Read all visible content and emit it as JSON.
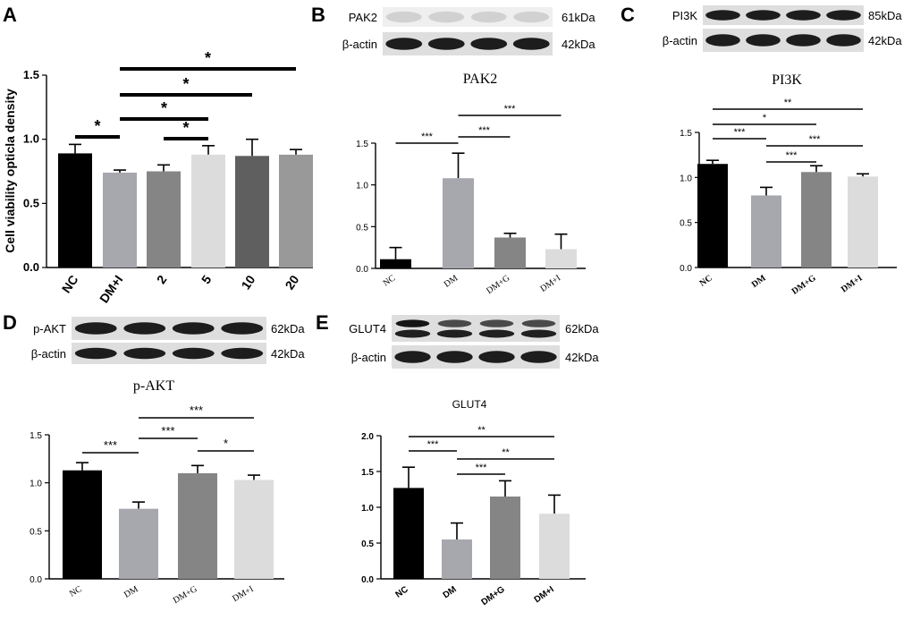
{
  "chart_data": [
    {
      "panel": "A",
      "type": "bar",
      "ylabel": "Cell viability opticla density",
      "categories": [
        "NC",
        "DM+I",
        "2",
        "5",
        "10",
        "20"
      ],
      "values": [
        0.89,
        0.74,
        0.75,
        0.88,
        0.87,
        0.88
      ],
      "errors": [
        0.07,
        0.02,
        0.05,
        0.07,
        0.13,
        0.04
      ],
      "ylim": [
        0.0,
        1.5
      ],
      "yticks": [
        "0.0",
        "0.5",
        "1.0",
        "1.5"
      ],
      "colors": [
        "#000000",
        "#a7a7ae",
        "#858585",
        "#dcdcdc",
        "#5f5f5f",
        "#999999"
      ],
      "significance": [
        {
          "from": 0,
          "to": 1,
          "label": "*"
        },
        {
          "from": 2,
          "to": 3,
          "label": "*"
        },
        {
          "from": 1,
          "to": 3,
          "label": "*"
        },
        {
          "from": 1,
          "to": 4,
          "label": "*"
        },
        {
          "from": 1,
          "to": 5,
          "label": "*"
        }
      ],
      "blot": null
    },
    {
      "panel": "B",
      "type": "bar",
      "title": "PAK2",
      "categories": [
        "NC",
        "DM",
        "DM+G",
        "DM+I"
      ],
      "values": [
        0.11,
        1.08,
        0.37,
        0.23
      ],
      "errors": [
        0.14,
        0.3,
        0.05,
        0.18
      ],
      "ylim": [
        0.0,
        1.5
      ],
      "yticks": [
        "0.0",
        "0.5",
        "1.0",
        "1.5"
      ],
      "colors": [
        "#000000",
        "#a7a7ae",
        "#858585",
        "#dcdcdc"
      ],
      "significance": [
        {
          "from": 0,
          "to": 1,
          "label": "***"
        },
        {
          "from": 1,
          "to": 2,
          "label": "***"
        },
        {
          "from": 1,
          "to": 3,
          "label": "***"
        }
      ],
      "blot": {
        "rows": [
          {
            "label": "PAK2",
            "size": "61kDa",
            "style": "faint"
          },
          {
            "label": "β-actin",
            "size": "42kDa",
            "style": "dark"
          }
        ]
      }
    },
    {
      "panel": "C",
      "type": "bar",
      "title": "PI3K",
      "categories": [
        "NC",
        "DM",
        "DM+G",
        "DM+I"
      ],
      "values": [
        1.15,
        0.8,
        1.06,
        1.01
      ],
      "errors": [
        0.04,
        0.09,
        0.07,
        0.03
      ],
      "ylim": [
        0.0,
        1.5
      ],
      "yticks": [
        "0.0",
        "0.5",
        "1.0",
        "1.5"
      ],
      "colors": [
        "#000000",
        "#a7a7ae",
        "#858585",
        "#dcdcdc"
      ],
      "significance": [
        {
          "from": 0,
          "to": 1,
          "label": "***"
        },
        {
          "from": 1,
          "to": 2,
          "label": "***"
        },
        {
          "from": 1,
          "to": 3,
          "label": "***"
        },
        {
          "from": 0,
          "to": 2,
          "label": "*"
        },
        {
          "from": 0,
          "to": 3,
          "label": "**"
        }
      ],
      "blot": {
        "rows": [
          {
            "label": "PI3K",
            "size": "85kDa",
            "style": "dark"
          },
          {
            "label": "β-actin",
            "size": "42kDa",
            "style": "dark"
          }
        ]
      }
    },
    {
      "panel": "D",
      "type": "bar",
      "title": "p-AKT",
      "categories": [
        "NC",
        "DM",
        "DM+G",
        "DM+I"
      ],
      "values": [
        1.13,
        0.73,
        1.1,
        1.03
      ],
      "errors": [
        0.08,
        0.07,
        0.08,
        0.05
      ],
      "ylim": [
        0.0,
        1.5
      ],
      "yticks": [
        "0.0",
        "0.5",
        "1.0",
        "1.5"
      ],
      "colors": [
        "#000000",
        "#a7a7ae",
        "#858585",
        "#dcdcdc"
      ],
      "significance": [
        {
          "from": 0,
          "to": 1,
          "label": "***"
        },
        {
          "from": 1,
          "to": 2,
          "label": "***"
        },
        {
          "from": 2,
          "to": 3,
          "label": "*"
        },
        {
          "from": 1,
          "to": 3,
          "label": "***"
        }
      ],
      "blot": {
        "rows": [
          {
            "label": "p-AKT",
            "size": "62kDa",
            "style": "dark"
          },
          {
            "label": "β-actin",
            "size": "42kDa",
            "style": "dark"
          }
        ]
      }
    },
    {
      "panel": "E",
      "type": "bar",
      "title": "GLUT4",
      "categories": [
        "NC",
        "DM",
        "DM+G",
        "DM+I"
      ],
      "values": [
        1.27,
        0.55,
        1.15,
        0.91
      ],
      "errors": [
        0.29,
        0.23,
        0.22,
        0.26
      ],
      "ylim": [
        0.0,
        2.0
      ],
      "yticks": [
        "0.0",
        "0.5",
        "1.0",
        "1.5",
        "2.0"
      ],
      "colors": [
        "#000000",
        "#a7a7ae",
        "#858585",
        "#dcdcdc"
      ],
      "significance": [
        {
          "from": 0,
          "to": 1,
          "label": "***"
        },
        {
          "from": 1,
          "to": 2,
          "label": "***"
        },
        {
          "from": 1,
          "to": 3,
          "label": "**"
        },
        {
          "from": 0,
          "to": 3,
          "label": "**"
        }
      ],
      "blot": {
        "rows": [
          {
            "label": "GLUT4",
            "size": "62kDa",
            "style": "double"
          },
          {
            "label": "β-actin",
            "size": "42kDa",
            "style": "dark"
          }
        ]
      }
    }
  ]
}
